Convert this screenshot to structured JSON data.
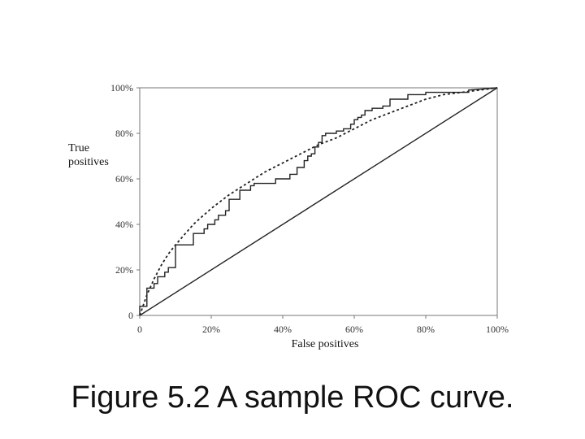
{
  "caption": "Figure 5.2  A sample ROC curve.",
  "chart_data": {
    "type": "line",
    "xlabel": "False positives",
    "ylabel": "True positives",
    "xlim": [
      0,
      100
    ],
    "ylim": [
      0,
      100
    ],
    "x_ticks": [
      "0",
      "20%",
      "40%",
      "60%",
      "80%",
      "100%"
    ],
    "y_ticks": [
      "0",
      "20%",
      "40%",
      "60%",
      "80%",
      "100%"
    ],
    "grid": false,
    "colors": {
      "line": "#222222",
      "axis": "#777777"
    },
    "series": [
      {
        "style": "step",
        "x": [
          0,
          0,
          2,
          2,
          3,
          3,
          4,
          4,
          5,
          5,
          6,
          6,
          7,
          7,
          8,
          8,
          10,
          10,
          15,
          15,
          18,
          18,
          19,
          19,
          21,
          21,
          22,
          22,
          24,
          24,
          25,
          25,
          28,
          28,
          31,
          31,
          32,
          32,
          35,
          35,
          38,
          38,
          40,
          40,
          42,
          42,
          43,
          43,
          44,
          44,
          45,
          45,
          46,
          46,
          47,
          47,
          48,
          48,
          49,
          49,
          50,
          50,
          51,
          51,
          52,
          52,
          53,
          53,
          55,
          55,
          57,
          57,
          59,
          59,
          60,
          60,
          61,
          61,
          62,
          62,
          63,
          63,
          65,
          65,
          68,
          68,
          70,
          70,
          75,
          75,
          80,
          80,
          85,
          85,
          92,
          92,
          100
        ],
        "y": [
          0,
          4,
          4,
          12,
          12,
          12,
          12,
          14,
          14,
          17,
          17,
          17,
          17,
          19,
          19,
          21,
          21,
          31,
          31,
          36,
          36,
          38,
          38,
          40,
          40,
          42,
          42,
          44,
          44,
          46,
          46,
          51,
          51,
          55,
          55,
          57,
          57,
          58,
          58,
          58,
          58,
          60,
          60,
          60,
          60,
          62,
          62,
          62,
          62,
          65,
          65,
          65,
          65,
          68,
          68,
          70,
          70,
          71,
          71,
          74,
          74,
          76,
          76,
          79,
          79,
          80,
          80,
          80,
          80,
          81,
          81,
          82,
          82,
          84,
          84,
          86,
          86,
          87,
          87,
          88,
          88,
          90,
          90,
          91,
          91,
          92,
          92,
          95,
          95,
          97,
          97,
          98,
          98,
          98,
          98,
          99,
          100
        ]
      },
      {
        "style": "dotted",
        "x": [
          0,
          2,
          4,
          6,
          8,
          10,
          15,
          20,
          25,
          30,
          35,
          40,
          45,
          50,
          55,
          60,
          65,
          70,
          75,
          80,
          85,
          90,
          95,
          100
        ],
        "y": [
          0,
          9,
          16,
          22,
          27,
          31,
          40,
          47,
          53,
          58,
          63,
          67,
          71,
          75,
          78,
          82,
          86,
          89,
          92,
          95,
          97,
          98,
          99,
          100
        ]
      },
      {
        "style": "solid",
        "x": [
          0,
          100
        ],
        "y": [
          0,
          100
        ]
      }
    ]
  }
}
